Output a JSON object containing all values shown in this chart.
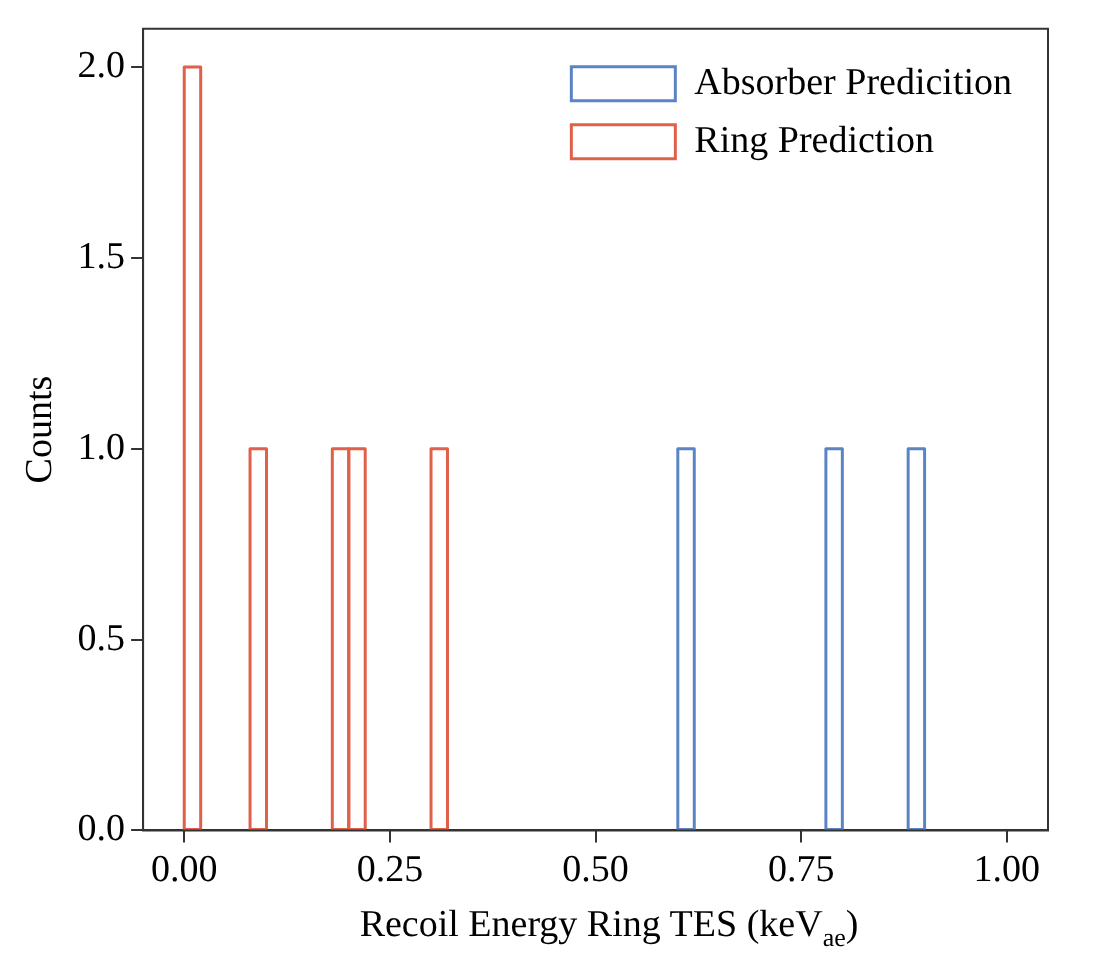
{
  "chart_data": {
    "type": "histogram",
    "xlabel": "Recoil Energy Ring TES (keV$_{ae}$)",
    "ylabel": "Counts",
    "bins": [
      0,
      0.02,
      0.04,
      0.06,
      0.08,
      0.1,
      0.12,
      0.14,
      0.16,
      0.18,
      0.2,
      0.22,
      0.24,
      0.26,
      0.28,
      0.3,
      0.32,
      0.34,
      0.36,
      0.38,
      0.4,
      0.42,
      0.44,
      0.46,
      0.48,
      0.5,
      0.52,
      0.54,
      0.56,
      0.58,
      0.6,
      0.62,
      0.64,
      0.66,
      0.68,
      0.7,
      0.72,
      0.74,
      0.76,
      0.78,
      0.8,
      0.82,
      0.84,
      0.86,
      0.88,
      0.9,
      0.92,
      0.94,
      0.96,
      0.98,
      1
    ],
    "series": [
      {
        "name": "Absorber Predicition",
        "color": "#5b84c4",
        "values": [
          0,
          0,
          0,
          0,
          0,
          0,
          0,
          0,
          0,
          0,
          0,
          0,
          0,
          0,
          0,
          0,
          0,
          0,
          0,
          0,
          0,
          0,
          0,
          0,
          0,
          0,
          0,
          0,
          0,
          0,
          1,
          0,
          0,
          0,
          0,
          0,
          0,
          0,
          0,
          1,
          0,
          0,
          0,
          0,
          1,
          0,
          0,
          0,
          0,
          0
        ]
      },
      {
        "name": "Ring Prediction",
        "color": "#e0604a",
        "values": [
          2,
          0,
          0,
          0,
          1,
          0,
          0,
          0,
          0,
          1,
          1,
          0,
          0,
          0,
          0,
          1,
          0,
          0,
          0,
          0,
          0,
          0,
          0,
          0,
          0,
          0,
          0,
          0,
          0,
          0,
          0,
          0,
          0,
          0,
          0,
          0,
          0,
          0,
          0,
          0,
          0,
          0,
          0,
          0,
          0,
          0,
          0,
          0,
          0,
          0
        ]
      }
    ],
    "xlim": [
      -0.05,
      1.05
    ],
    "xticks": [
      {
        "value": 0,
        "label": "0.00"
      },
      {
        "value": 0.25,
        "label": "0.25"
      },
      {
        "value": 0.5,
        "label": "0.50"
      },
      {
        "value": 0.75,
        "label": "0.75"
      },
      {
        "value": 1,
        "label": "1.00"
      }
    ],
    "ylim": [
      0,
      2.1
    ],
    "yticks": [
      {
        "value": 0,
        "label": "0.0"
      },
      {
        "value": 0.5,
        "label": "0.5"
      },
      {
        "value": 1,
        "label": "1.0"
      },
      {
        "value": 1.5,
        "label": "1.5"
      },
      {
        "value": 2,
        "label": "2.0"
      }
    ],
    "legend": "top right",
    "grid": false
  }
}
